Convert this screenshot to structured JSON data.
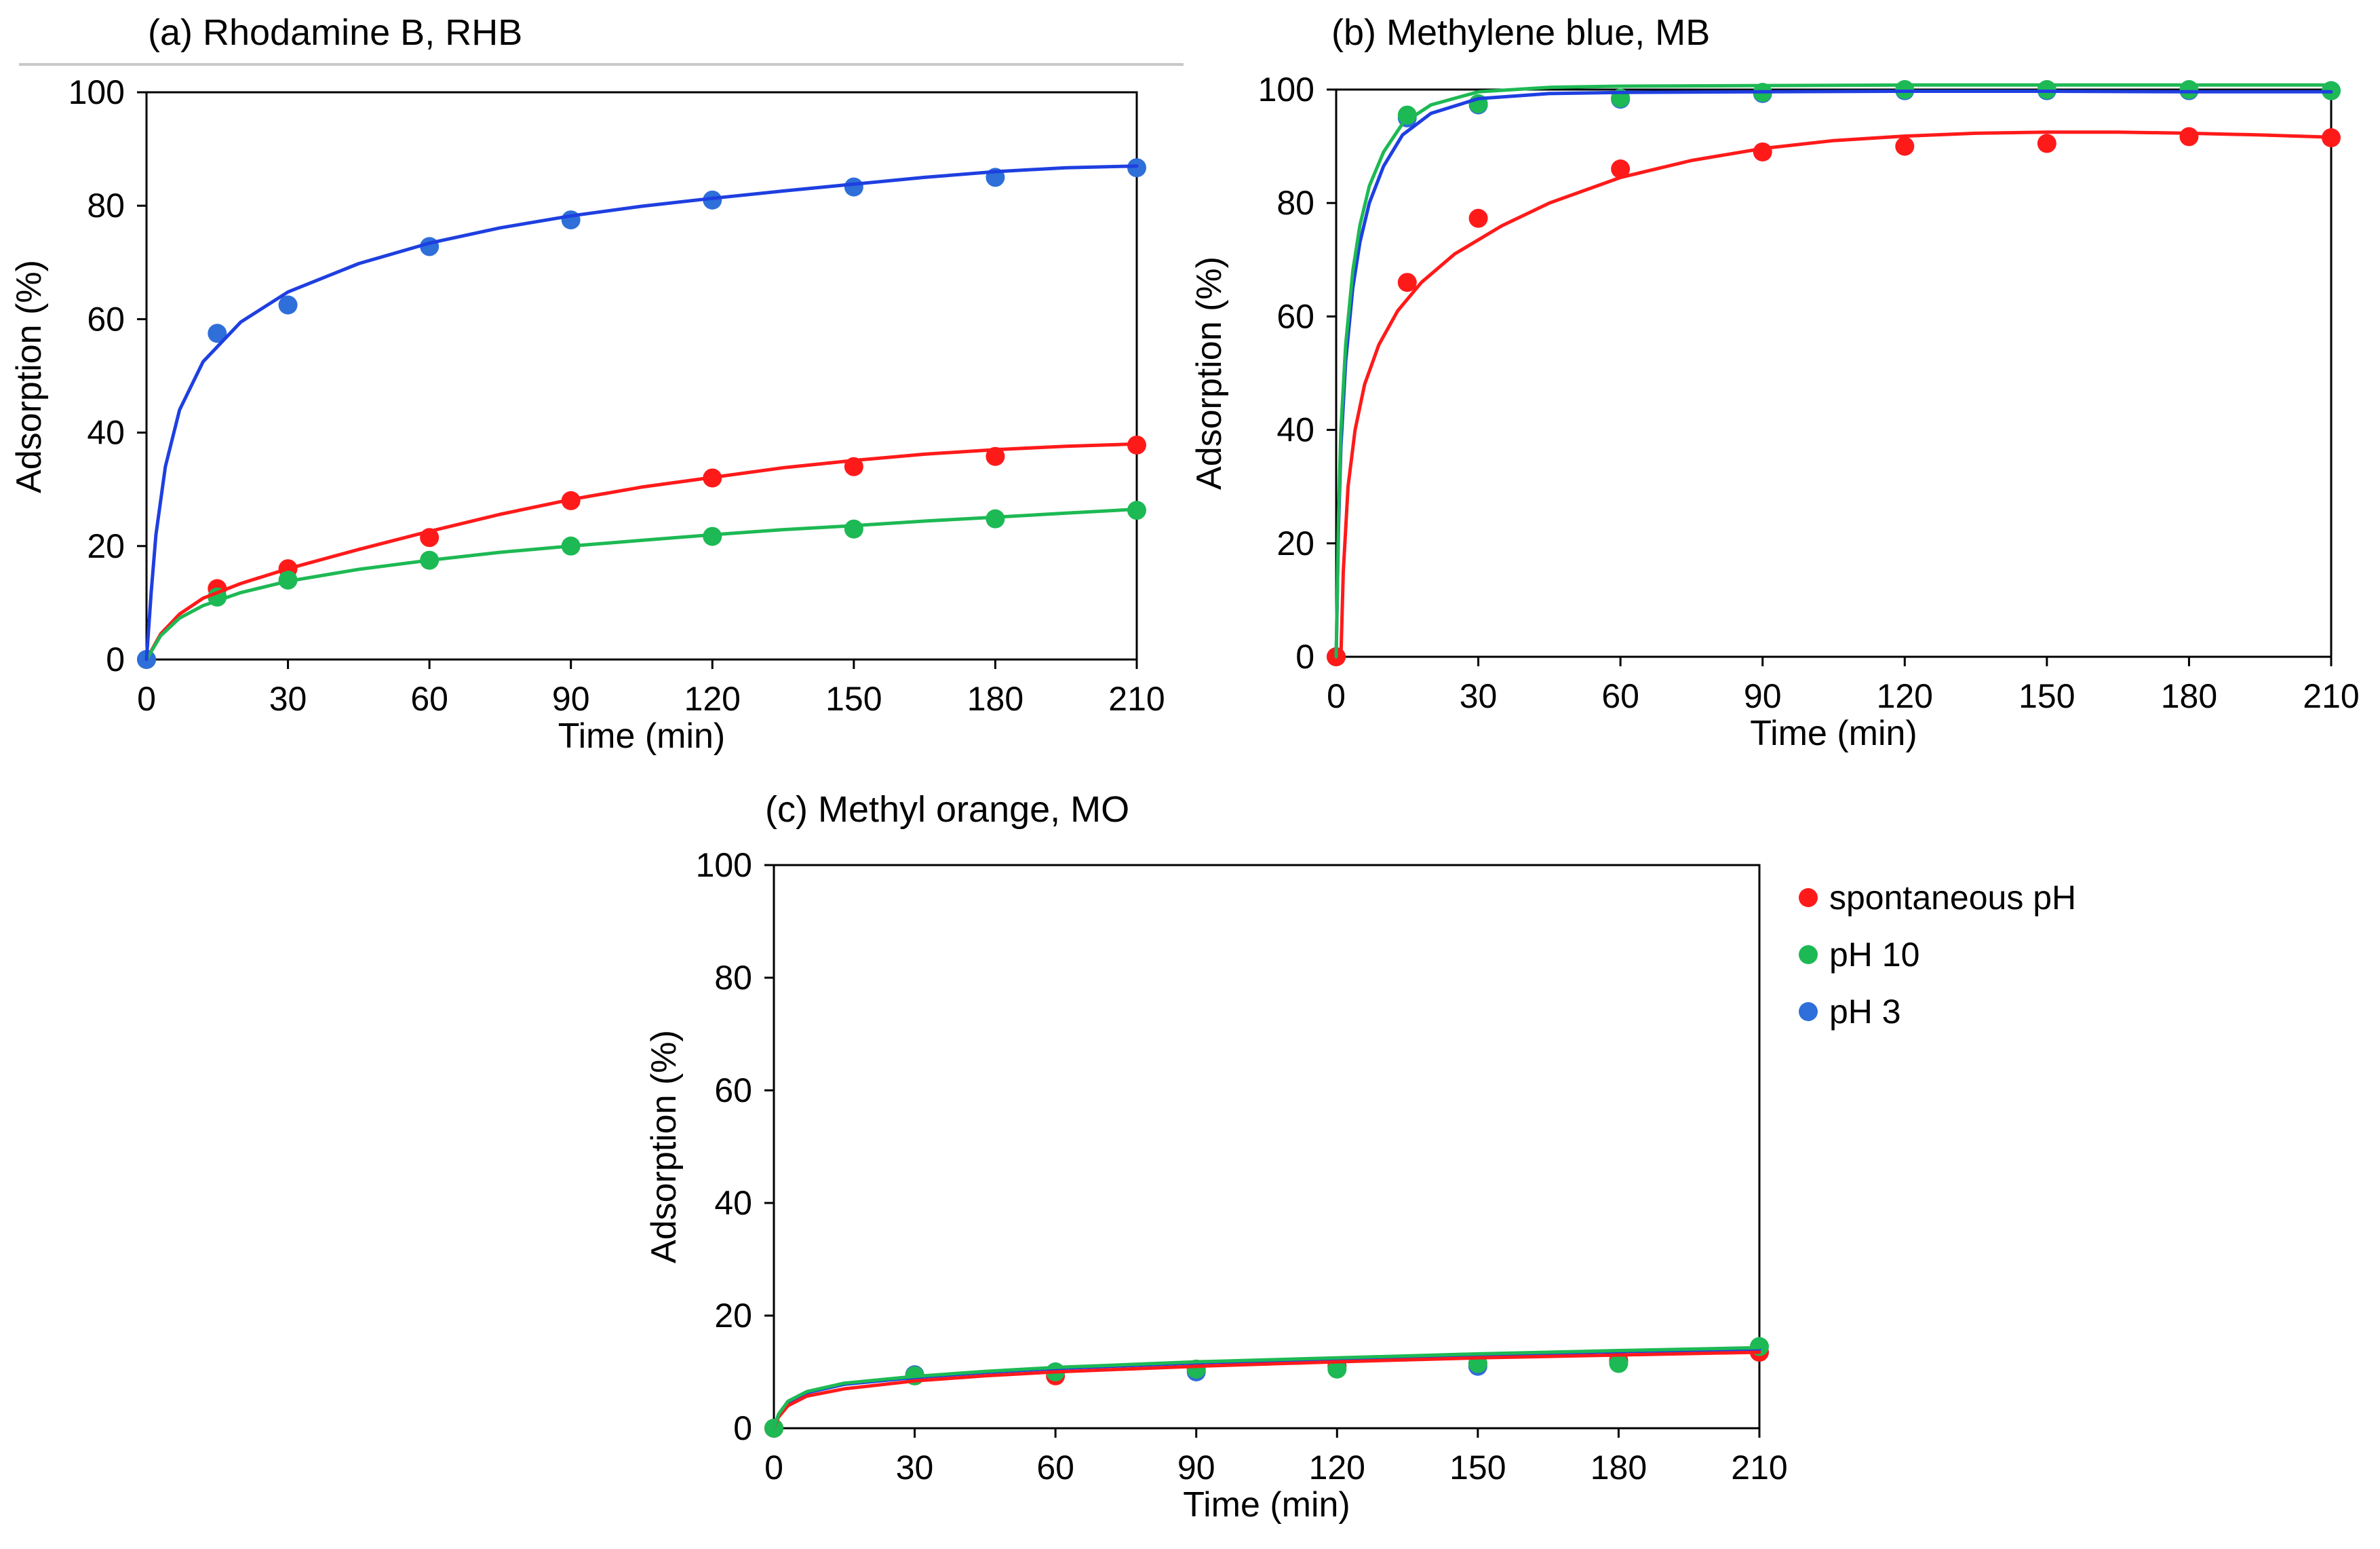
{
  "colors": {
    "spontaneous": "#ff1a1a",
    "ph10": "#1db954",
    "ph3": "#1e3fe0",
    "ph3_marker": "#2e6fd9"
  },
  "legend": {
    "items": [
      {
        "key": "spontaneous",
        "label": "spontaneous pH"
      },
      {
        "key": "ph10",
        "label": "pH 10"
      },
      {
        "key": "ph3",
        "label": "pH 3"
      }
    ]
  },
  "chart_data": [
    {
      "type": "scatter",
      "title": "(a) Rhodamine B, RHB",
      "xlabel": "Time (min)",
      "ylabel": "Adsorption (%)",
      "xlim": [
        0,
        210
      ],
      "ylim": [
        0,
        100
      ],
      "xticks": [
        0,
        30,
        60,
        90,
        120,
        150,
        180,
        210
      ],
      "yticks": [
        0,
        20,
        40,
        60,
        80,
        100
      ],
      "x": [
        0,
        15,
        30,
        60,
        90,
        120,
        150,
        180,
        210
      ],
      "series": [
        {
          "name": "spontaneous pH",
          "key": "spontaneous",
          "values": [
            0,
            12.5,
            16,
            21.5,
            28,
            32,
            34,
            35.8,
            37.8
          ],
          "fit": [
            [
              0,
              0
            ],
            [
              3,
              4.5
            ],
            [
              7,
              8
            ],
            [
              12,
              10.8
            ],
            [
              20,
              13.4
            ],
            [
              30,
              16
            ],
            [
              45,
              19.4
            ],
            [
              60,
              22.6
            ],
            [
              75,
              25.6
            ],
            [
              90,
              28.2
            ],
            [
              105,
              30.4
            ],
            [
              120,
              32.1
            ],
            [
              135,
              33.8
            ],
            [
              150,
              35.1
            ],
            [
              165,
              36.2
            ],
            [
              180,
              37
            ],
            [
              195,
              37.6
            ],
            [
              210,
              38
            ]
          ]
        },
        {
          "name": "pH 10",
          "key": "ph10",
          "values": [
            0,
            11,
            14,
            17.5,
            20,
            21.7,
            23,
            24.8,
            26.3
          ],
          "fit": [
            [
              0,
              0
            ],
            [
              3,
              4.2
            ],
            [
              7,
              7.3
            ],
            [
              12,
              9.5
            ],
            [
              20,
              11.8
            ],
            [
              30,
              13.8
            ],
            [
              45,
              15.9
            ],
            [
              60,
              17.5
            ],
            [
              75,
              18.9
            ],
            [
              90,
              20
            ],
            [
              105,
              21
            ],
            [
              120,
              22
            ],
            [
              135,
              22.9
            ],
            [
              150,
              23.6
            ],
            [
              165,
              24.4
            ],
            [
              180,
              25.1
            ],
            [
              195,
              25.8
            ],
            [
              210,
              26.5
            ]
          ]
        },
        {
          "name": "pH 3",
          "key": "ph3",
          "values": [
            0,
            57.5,
            62.5,
            72.8,
            77.5,
            81,
            83.3,
            85,
            86.7
          ],
          "fit": [
            [
              0,
              0
            ],
            [
              1,
              12
            ],
            [
              2,
              22
            ],
            [
              4,
              34
            ],
            [
              7,
              44
            ],
            [
              12,
              52.5
            ],
            [
              20,
              59.5
            ],
            [
              30,
              64.8
            ],
            [
              45,
              69.8
            ],
            [
              60,
              73.4
            ],
            [
              75,
              76.1
            ],
            [
              90,
              78.2
            ],
            [
              105,
              79.9
            ],
            [
              120,
              81.3
            ],
            [
              135,
              82.6
            ],
            [
              150,
              83.8
            ],
            [
              165,
              85
            ],
            [
              180,
              86
            ],
            [
              195,
              86.7
            ],
            [
              210,
              87
            ]
          ]
        }
      ]
    },
    {
      "type": "scatter",
      "title": "(b) Methylene blue, MB",
      "xlabel": "Time (min)",
      "ylabel": "Adsorption  (%)",
      "xlim": [
        0,
        210
      ],
      "ylim": [
        0,
        100
      ],
      "xticks": [
        0,
        30,
        60,
        90,
        120,
        150,
        180,
        210
      ],
      "yticks": [
        0,
        20,
        40,
        60,
        80,
        100
      ],
      "x": [
        0,
        15,
        30,
        60,
        90,
        120,
        150,
        180,
        210
      ],
      "series": [
        {
          "name": "spontaneous pH",
          "key": "spontaneous",
          "values": [
            0,
            66,
            77.3,
            86,
            89,
            90,
            90.5,
            91.7,
            91.5
          ],
          "fit": [
            [
              1,
              0
            ],
            [
              1.5,
              15
            ],
            [
              2.5,
              30
            ],
            [
              4,
              40
            ],
            [
              6,
              48
            ],
            [
              9,
              55
            ],
            [
              13,
              61
            ],
            [
              18,
              66
            ],
            [
              25,
              71
            ],
            [
              35,
              76
            ],
            [
              45,
              80
            ],
            [
              60,
              84.5
            ],
            [
              75,
              87.5
            ],
            [
              90,
              89.6
            ],
            [
              105,
              91
            ],
            [
              120,
              91.8
            ],
            [
              135,
              92.3
            ],
            [
              150,
              92.5
            ],
            [
              165,
              92.5
            ],
            [
              180,
              92.3
            ],
            [
              195,
              92
            ],
            [
              210,
              91.6
            ]
          ]
        },
        {
          "name": "pH 10",
          "key": "ph10",
          "values": [
            0,
            95.5,
            97.5,
            98.5,
            99.5,
            100,
            100,
            100,
            99.8
          ],
          "fit": [
            [
              0,
              0
            ],
            [
              0.5,
              25
            ],
            [
              1,
              40
            ],
            [
              2,
              55
            ],
            [
              3.5,
              68
            ],
            [
              5,
              76
            ],
            [
              7,
              83
            ],
            [
              10,
              89
            ],
            [
              14,
              94
            ],
            [
              20,
              97.3
            ],
            [
              30,
              99.6
            ],
            [
              45,
              100.4
            ],
            [
              60,
              100.6
            ],
            [
              90,
              100.7
            ],
            [
              120,
              100.8
            ],
            [
              150,
              100.8
            ],
            [
              180,
              100.8
            ],
            [
              210,
              100.8
            ]
          ]
        },
        {
          "name": "pH 3",
          "key": "ph3",
          "values": [
            0,
            95,
            97.3,
            98.3,
            99.3,
            99.8,
            99.8,
            99.8,
            99.8
          ],
          "fit": [
            [
              0,
              0
            ],
            [
              0.5,
              23
            ],
            [
              1,
              37
            ],
            [
              2,
              52
            ],
            [
              3.5,
              65
            ],
            [
              5,
              73
            ],
            [
              7,
              80
            ],
            [
              10,
              86.5
            ],
            [
              14,
              92
            ],
            [
              20,
              95.8
            ],
            [
              30,
              98.4
            ],
            [
              45,
              99.3
            ],
            [
              60,
              99.5
            ],
            [
              90,
              99.6
            ],
            [
              120,
              99.7
            ],
            [
              150,
              99.7
            ],
            [
              180,
              99.6
            ],
            [
              210,
              99.6
            ]
          ]
        }
      ]
    },
    {
      "type": "scatter",
      "title": "(c) Methyl orange, MO",
      "xlabel": "Time (min)",
      "ylabel": "Adsorption (%)",
      "xlim": [
        0,
        210
      ],
      "ylim": [
        0,
        100
      ],
      "xticks": [
        0,
        30,
        60,
        90,
        120,
        150,
        180,
        210
      ],
      "yticks": [
        0,
        20,
        40,
        60,
        80,
        100
      ],
      "x": [
        0,
        30,
        60,
        90,
        120,
        150,
        180,
        210
      ],
      "series": [
        {
          "name": "spontaneous pH",
          "key": "spontaneous",
          "values": [
            0,
            9.3,
            9.3,
            10.5,
            11,
            11.5,
            12,
            13.5
          ],
          "fit": [
            [
              0,
              0
            ],
            [
              1,
              2
            ],
            [
              3,
              4
            ],
            [
              7,
              5.7
            ],
            [
              15,
              7
            ],
            [
              30,
              8.4
            ],
            [
              45,
              9.3
            ],
            [
              60,
              10
            ],
            [
              90,
              11
            ],
            [
              120,
              11.8
            ],
            [
              150,
              12.5
            ],
            [
              180,
              13
            ],
            [
              210,
              13.5
            ]
          ]
        },
        {
          "name": "pH 10",
          "key": "ph10",
          "values": [
            0,
            9.3,
            10,
            10.5,
            10.5,
            11.5,
            11.5,
            14.5
          ],
          "fit": [
            [
              0,
              0
            ],
            [
              1,
              2.5
            ],
            [
              3,
              4.8
            ],
            [
              7,
              6.5
            ],
            [
              15,
              8
            ],
            [
              30,
              9.2
            ],
            [
              45,
              10.1
            ],
            [
              60,
              10.8
            ],
            [
              90,
              11.8
            ],
            [
              120,
              12.5
            ],
            [
              150,
              13.2
            ],
            [
              180,
              13.8
            ],
            [
              210,
              14.3
            ]
          ]
        },
        {
          "name": "pH 3",
          "key": "ph3",
          "values": [
            0,
            9.5,
            10,
            10,
            11,
            11,
            12,
            13.5
          ],
          "fit": [
            [
              0,
              0
            ],
            [
              1,
              2.4
            ],
            [
              3,
              4.6
            ],
            [
              7,
              6.3
            ],
            [
              15,
              7.8
            ],
            [
              30,
              9
            ],
            [
              45,
              9.9
            ],
            [
              60,
              10.6
            ],
            [
              90,
              11.6
            ],
            [
              120,
              12.3
            ],
            [
              150,
              13
            ],
            [
              180,
              13.6
            ],
            [
              210,
              14
            ]
          ]
        }
      ]
    }
  ]
}
